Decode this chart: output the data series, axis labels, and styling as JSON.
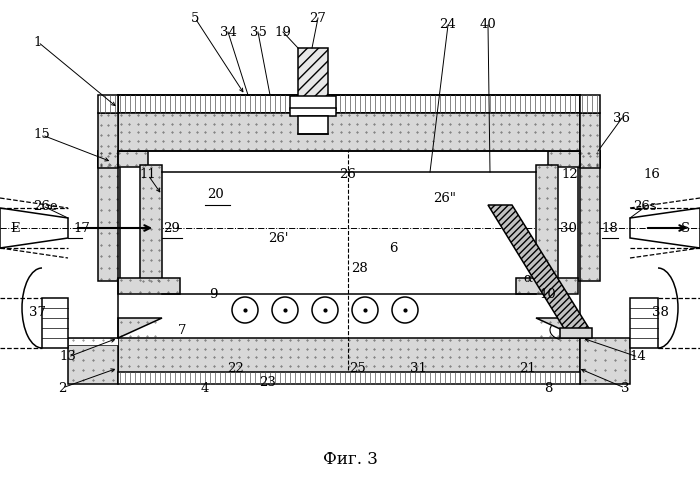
{
  "title": "Фиг. 3",
  "bg": "#ffffff",
  "lc": "#000000",
  "stipple_fc": "#cccccc",
  "hatch_fc": "#bbbbbb",
  "body_fc": "#d8d8d8",
  "labels": [
    [
      "1",
      38,
      42
    ],
    [
      "2",
      62,
      388
    ],
    [
      "3",
      625,
      388
    ],
    [
      "4",
      205,
      388
    ],
    [
      "5",
      195,
      18
    ],
    [
      "6",
      393,
      248
    ],
    [
      "7",
      182,
      330
    ],
    [
      "8",
      548,
      388
    ],
    [
      "9",
      213,
      295
    ],
    [
      "10",
      548,
      295
    ],
    [
      "11",
      148,
      175
    ],
    [
      "12",
      570,
      175
    ],
    [
      "13",
      68,
      357
    ],
    [
      "14",
      638,
      357
    ],
    [
      "15",
      42,
      135
    ],
    [
      "16",
      652,
      175
    ],
    [
      "17",
      82,
      228
    ],
    [
      "18",
      610,
      228
    ],
    [
      "19",
      283,
      32
    ],
    [
      "20",
      215,
      195
    ],
    [
      "21",
      528,
      368
    ],
    [
      "22",
      235,
      368
    ],
    [
      "23",
      268,
      382
    ],
    [
      "24",
      448,
      25
    ],
    [
      "25",
      358,
      368
    ],
    [
      "26",
      348,
      175
    ],
    [
      "26e",
      45,
      207
    ],
    [
      "26'",
      278,
      238
    ],
    [
      "26\"",
      445,
      198
    ],
    [
      "26s",
      645,
      207
    ],
    [
      "27",
      318,
      18
    ],
    [
      "28",
      360,
      268
    ],
    [
      "29",
      172,
      228
    ],
    [
      "30",
      568,
      228
    ],
    [
      "31",
      418,
      368
    ],
    [
      "34",
      228,
      32
    ],
    [
      "35",
      258,
      32
    ],
    [
      "36",
      622,
      118
    ],
    [
      "37",
      38,
      312
    ],
    [
      "38",
      660,
      312
    ],
    [
      "40",
      488,
      25
    ],
    [
      "E",
      15,
      228
    ],
    [
      "S",
      685,
      228
    ],
    [
      "α",
      528,
      278
    ]
  ],
  "underlined": [
    "17",
    "18",
    "20",
    "29"
  ],
  "arrows": [
    [
      38,
      42,
      118,
      108,
      "->"
    ],
    [
      195,
      18,
      245,
      95,
      "->"
    ],
    [
      42,
      135,
      112,
      162,
      "->"
    ],
    [
      148,
      175,
      162,
      195,
      "->"
    ],
    [
      62,
      388,
      118,
      368,
      "->"
    ],
    [
      68,
      357,
      118,
      338,
      "->"
    ],
    [
      625,
      388,
      578,
      368,
      "->"
    ],
    [
      638,
      357,
      582,
      338,
      "->"
    ]
  ]
}
